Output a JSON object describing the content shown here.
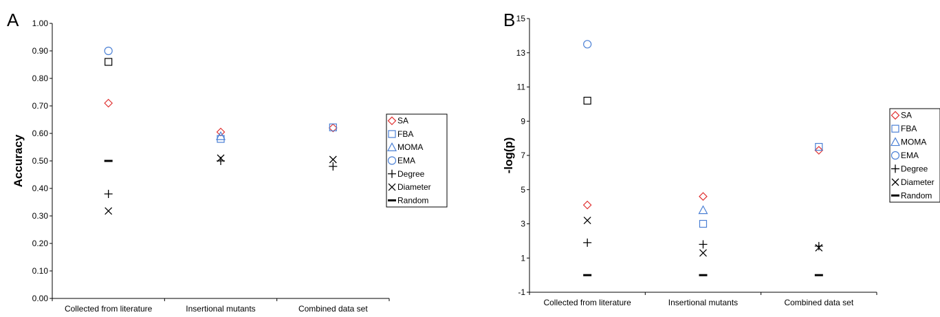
{
  "chart_data": [
    {
      "panel": "A",
      "type": "scatter",
      "ylabel": "Accuracy",
      "xlabel": "",
      "ylim": [
        0,
        1
      ],
      "yticks": [
        "0.00",
        "0.10",
        "0.20",
        "0.30",
        "0.40",
        "0.50",
        "0.60",
        "0.70",
        "0.80",
        "0.90",
        "1.00"
      ],
      "categories": [
        "Collected from literature",
        "Insertional mutants",
        "Combined data set"
      ],
      "legend_position": "right",
      "series": [
        {
          "name": "SA",
          "marker": "diamond",
          "color": "#e03030",
          "values": [
            0.71,
            0.605,
            0.62
          ]
        },
        {
          "name": "FBA",
          "marker": "square",
          "color": "#4a7fd4",
          "values": [
            null,
            0.58,
            0.622
          ]
        },
        {
          "name": "MOMA",
          "marker": "triangle",
          "color": "#4a7fd4",
          "values": [
            null,
            0.59,
            null
          ]
        },
        {
          "name": "EMA",
          "marker": "circle",
          "color": "#4a7fd4",
          "values": [
            0.9,
            null,
            null
          ]
        },
        {
          "name": "Degree",
          "marker": "plus",
          "color": "#000000",
          "values": [
            0.38,
            0.5,
            0.48
          ]
        },
        {
          "name": "Diameter",
          "marker": "x",
          "color": "#000000",
          "values": [
            0.318,
            0.51,
            0.505
          ]
        },
        {
          "name": "Random",
          "marker": "dash",
          "color": "#000000",
          "values": [
            0.5,
            null,
            null
          ]
        }
      ],
      "extra_points": [
        {
          "category": "Collected from literature",
          "value": 0.86,
          "marker": "square",
          "color": "#000000"
        }
      ]
    },
    {
      "panel": "B",
      "type": "scatter",
      "ylabel": "-log(p)",
      "xlabel": "",
      "ylim": [
        -1,
        15
      ],
      "yticks": [
        "-1",
        "1",
        "3",
        "5",
        "7",
        "9",
        "11",
        "13",
        "15"
      ],
      "categories": [
        "Collected from literature",
        "Insertional mutants",
        "Combined data set"
      ],
      "legend_position": "right",
      "series": [
        {
          "name": "SA",
          "marker": "diamond",
          "color": "#e03030",
          "values": [
            4.1,
            4.6,
            7.3
          ]
        },
        {
          "name": "FBA",
          "marker": "square",
          "color": "#4a7fd4",
          "values": [
            null,
            3.0,
            7.5
          ]
        },
        {
          "name": "MOMA",
          "marker": "triangle",
          "color": "#4a7fd4",
          "values": [
            null,
            3.8,
            null
          ]
        },
        {
          "name": "EMA",
          "marker": "circle",
          "color": "#4a7fd4",
          "values": [
            13.5,
            null,
            null
          ]
        },
        {
          "name": "Degree",
          "marker": "plus",
          "color": "#000000",
          "values": [
            1.9,
            1.8,
            1.7
          ]
        },
        {
          "name": "Diameter",
          "marker": "x",
          "color": "#000000",
          "values": [
            3.2,
            1.3,
            1.6
          ]
        },
        {
          "name": "Random",
          "marker": "dash",
          "color": "#000000",
          "values": [
            0.0,
            0.0,
            0.0
          ]
        }
      ],
      "extra_points": [
        {
          "category": "Collected from literature",
          "value": 10.2,
          "marker": "square",
          "color": "#000000"
        }
      ]
    }
  ]
}
